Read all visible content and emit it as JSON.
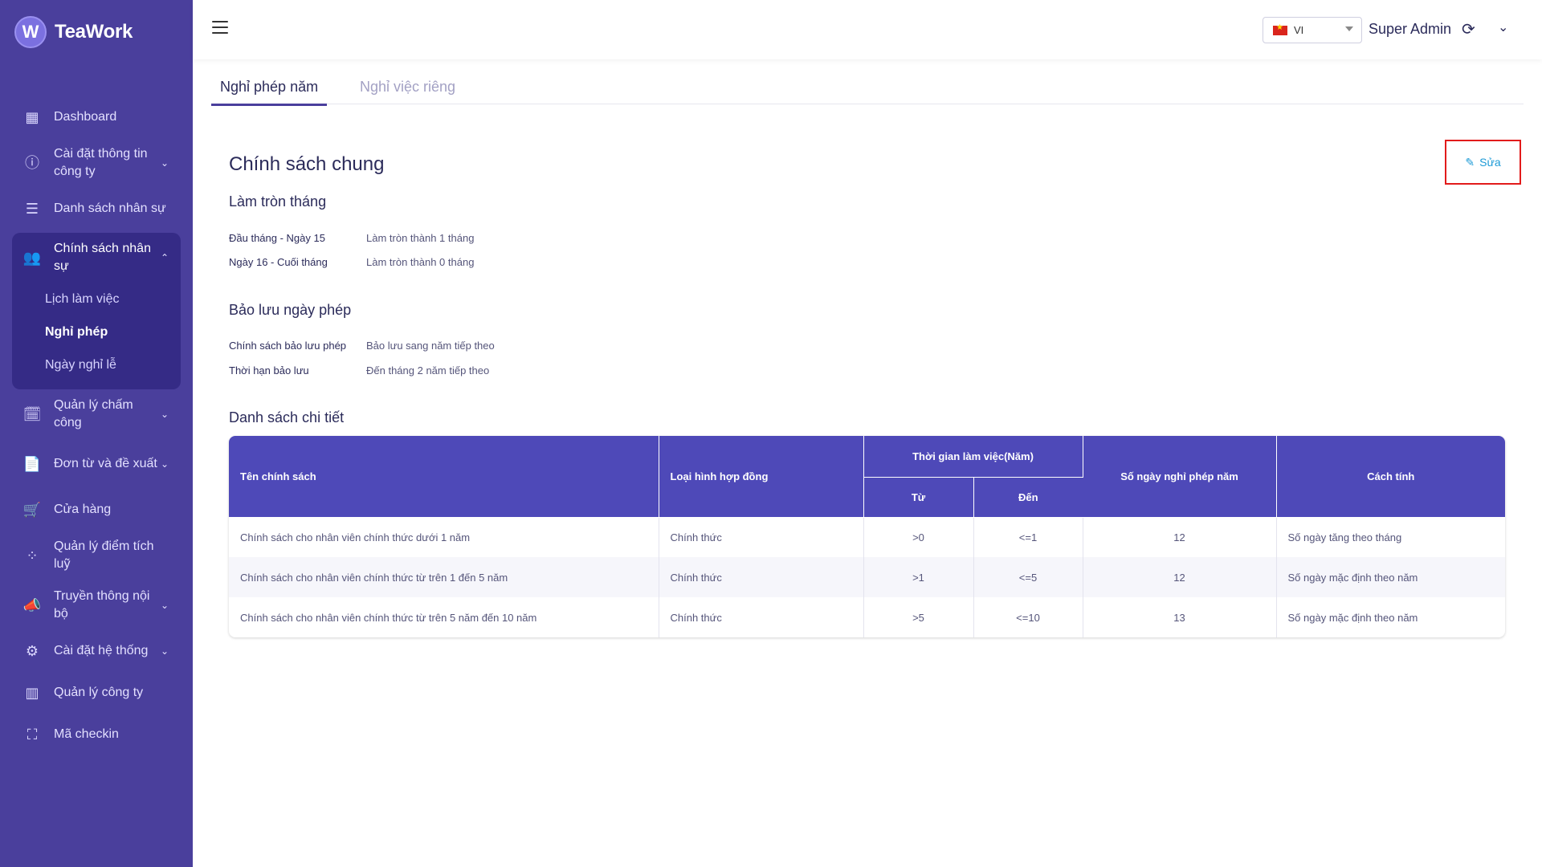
{
  "brand": {
    "logo_letter": "W",
    "name": "TeaWork"
  },
  "sidebar": {
    "items": [
      {
        "label": "Dashboard",
        "icon": "dashboard-icon"
      },
      {
        "label": "Cài đặt thông tin công ty",
        "icon": "info-icon"
      },
      {
        "label": "Danh sách nhân sự",
        "icon": "list-icon"
      },
      {
        "label": "Chính sách nhân sự",
        "icon": "people-icon"
      },
      {
        "label": "Quản lý chấm công",
        "icon": "calendar-clock-icon"
      },
      {
        "label": "Đơn từ và đề xuất",
        "icon": "document-icon"
      },
      {
        "label": "Cửa hàng",
        "icon": "cart-icon"
      },
      {
        "label": "Quản lý điểm tích luỹ",
        "icon": "points-icon"
      },
      {
        "label": "Truyền thông nội bộ",
        "icon": "megaphone-icon"
      },
      {
        "label": "Cài đặt hệ thống",
        "icon": "gears-icon"
      },
      {
        "label": "Quản lý công ty",
        "icon": "building-icon"
      },
      {
        "label": "Mã checkin",
        "icon": "scan-icon"
      }
    ],
    "sub_items": [
      "Lịch làm việc",
      "Nghỉ phép",
      "Ngày nghỉ lễ"
    ]
  },
  "header": {
    "lang": "VI",
    "user": "Super Admin"
  },
  "tabs": [
    "Nghỉ phép năm",
    "Nghỉ việc riêng"
  ],
  "main": {
    "title": "Chính sách chung",
    "edit_label": "Sửa",
    "rounding": {
      "title": "Làm tròn tháng",
      "rows": [
        {
          "k": "Đầu tháng - Ngày 15",
          "v": "Làm tròn thành 1 tháng"
        },
        {
          "k": "Ngày 16 - Cuối tháng",
          "v": "Làm tròn thành 0 tháng"
        }
      ]
    },
    "reserve": {
      "title": "Bảo lưu ngày phép",
      "rows": [
        {
          "k": "Chính sách bảo lưu phép",
          "v": "Bảo lưu sang năm tiếp theo"
        },
        {
          "k": "Thời hạn bảo lưu",
          "v": "Đến tháng 2 năm tiếp theo"
        }
      ]
    },
    "detail_title": "Danh sách chi tiết"
  },
  "table": {
    "headers": {
      "name": "Tên chính sách",
      "contract": "Loại hình hợp đồng",
      "period": "Thời gian làm việc(Năm)",
      "from": "Từ",
      "to": "Đến",
      "days": "Số ngày nghỉ phép năm",
      "method": "Cách tính"
    },
    "rows": [
      {
        "name": "Chính sách cho nhân viên chính thức dưới 1 năm",
        "contract": "Chính thức",
        "from": ">0",
        "to": "<=1",
        "days": "12",
        "method": "Số ngày tăng theo tháng"
      },
      {
        "name": "Chính sách cho nhân viên chính thức từ trên 1 đến 5 năm",
        "contract": "Chính thức",
        "from": ">1",
        "to": "<=5",
        "days": "12",
        "method": "Số ngày mặc định theo năm"
      },
      {
        "name": "Chính sách cho nhân viên chính thức từ trên 5 năm đến 10 năm",
        "contract": "Chính thức",
        "from": ">5",
        "to": "<=10",
        "days": "13",
        "method": "Số ngày mặc định theo năm"
      }
    ]
  }
}
